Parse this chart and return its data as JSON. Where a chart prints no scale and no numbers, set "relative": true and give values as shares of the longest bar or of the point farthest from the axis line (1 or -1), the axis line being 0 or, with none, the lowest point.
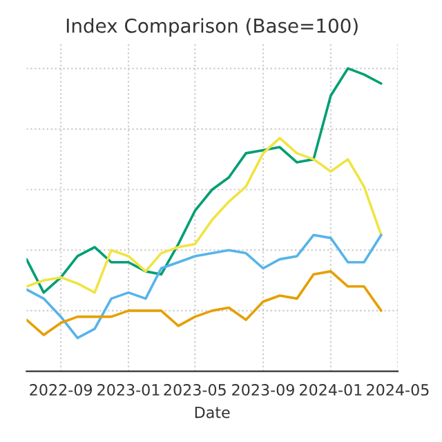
{
  "chart_data": {
    "type": "line",
    "title": "Index Comparison (Base=100)",
    "xlabel": "Date",
    "relative": true,
    "grid": true,
    "legend": false,
    "x": [
      "2022-07",
      "2022-08",
      "2022-09",
      "2022-10",
      "2022-11",
      "2022-12",
      "2023-01",
      "2023-02",
      "2023-03",
      "2023-04",
      "2023-05",
      "2023-06",
      "2023-07",
      "2023-08",
      "2023-09",
      "2023-10",
      "2023-11",
      "2023-12",
      "2024-01",
      "2024-02",
      "2024-03",
      "2024-04"
    ],
    "xlim": [
      "2022-07",
      "2024-05"
    ],
    "xticks": [
      "2022-09",
      "2023-01",
      "2023-05",
      "2023-09",
      "2024-01",
      "2024-05"
    ],
    "series": [
      {
        "color": "#009e73",
        "values": [
          0.37,
          0.26,
          0.31,
          0.38,
          0.41,
          0.36,
          0.36,
          0.33,
          0.32,
          0.42,
          0.53,
          0.6,
          0.64,
          0.72,
          0.73,
          0.74,
          0.69,
          0.7,
          0.91,
          1.0,
          0.98,
          0.95
        ]
      },
      {
        "color": "#f0e442",
        "values": [
          0.28,
          0.3,
          0.31,
          0.29,
          0.26,
          0.4,
          0.38,
          0.33,
          0.39,
          0.41,
          0.42,
          0.5,
          0.56,
          0.61,
          0.72,
          0.77,
          0.72,
          0.7,
          0.66,
          0.7,
          0.61,
          0.45
        ]
      },
      {
        "color": "#56b4e9",
        "values": [
          0.27,
          0.24,
          0.18,
          0.11,
          0.14,
          0.24,
          0.26,
          0.24,
          0.34,
          0.36,
          0.38,
          0.39,
          0.4,
          0.39,
          0.34,
          0.37,
          0.38,
          0.45,
          0.44,
          0.36,
          0.36,
          0.45
        ]
      },
      {
        "color": "#e69f00",
        "values": [
          0.17,
          0.12,
          0.16,
          0.18,
          0.18,
          0.18,
          0.2,
          0.2,
          0.2,
          0.15,
          0.18,
          0.2,
          0.21,
          0.17,
          0.23,
          0.25,
          0.24,
          0.32,
          0.33,
          0.28,
          0.28,
          0.2
        ]
      }
    ]
  }
}
